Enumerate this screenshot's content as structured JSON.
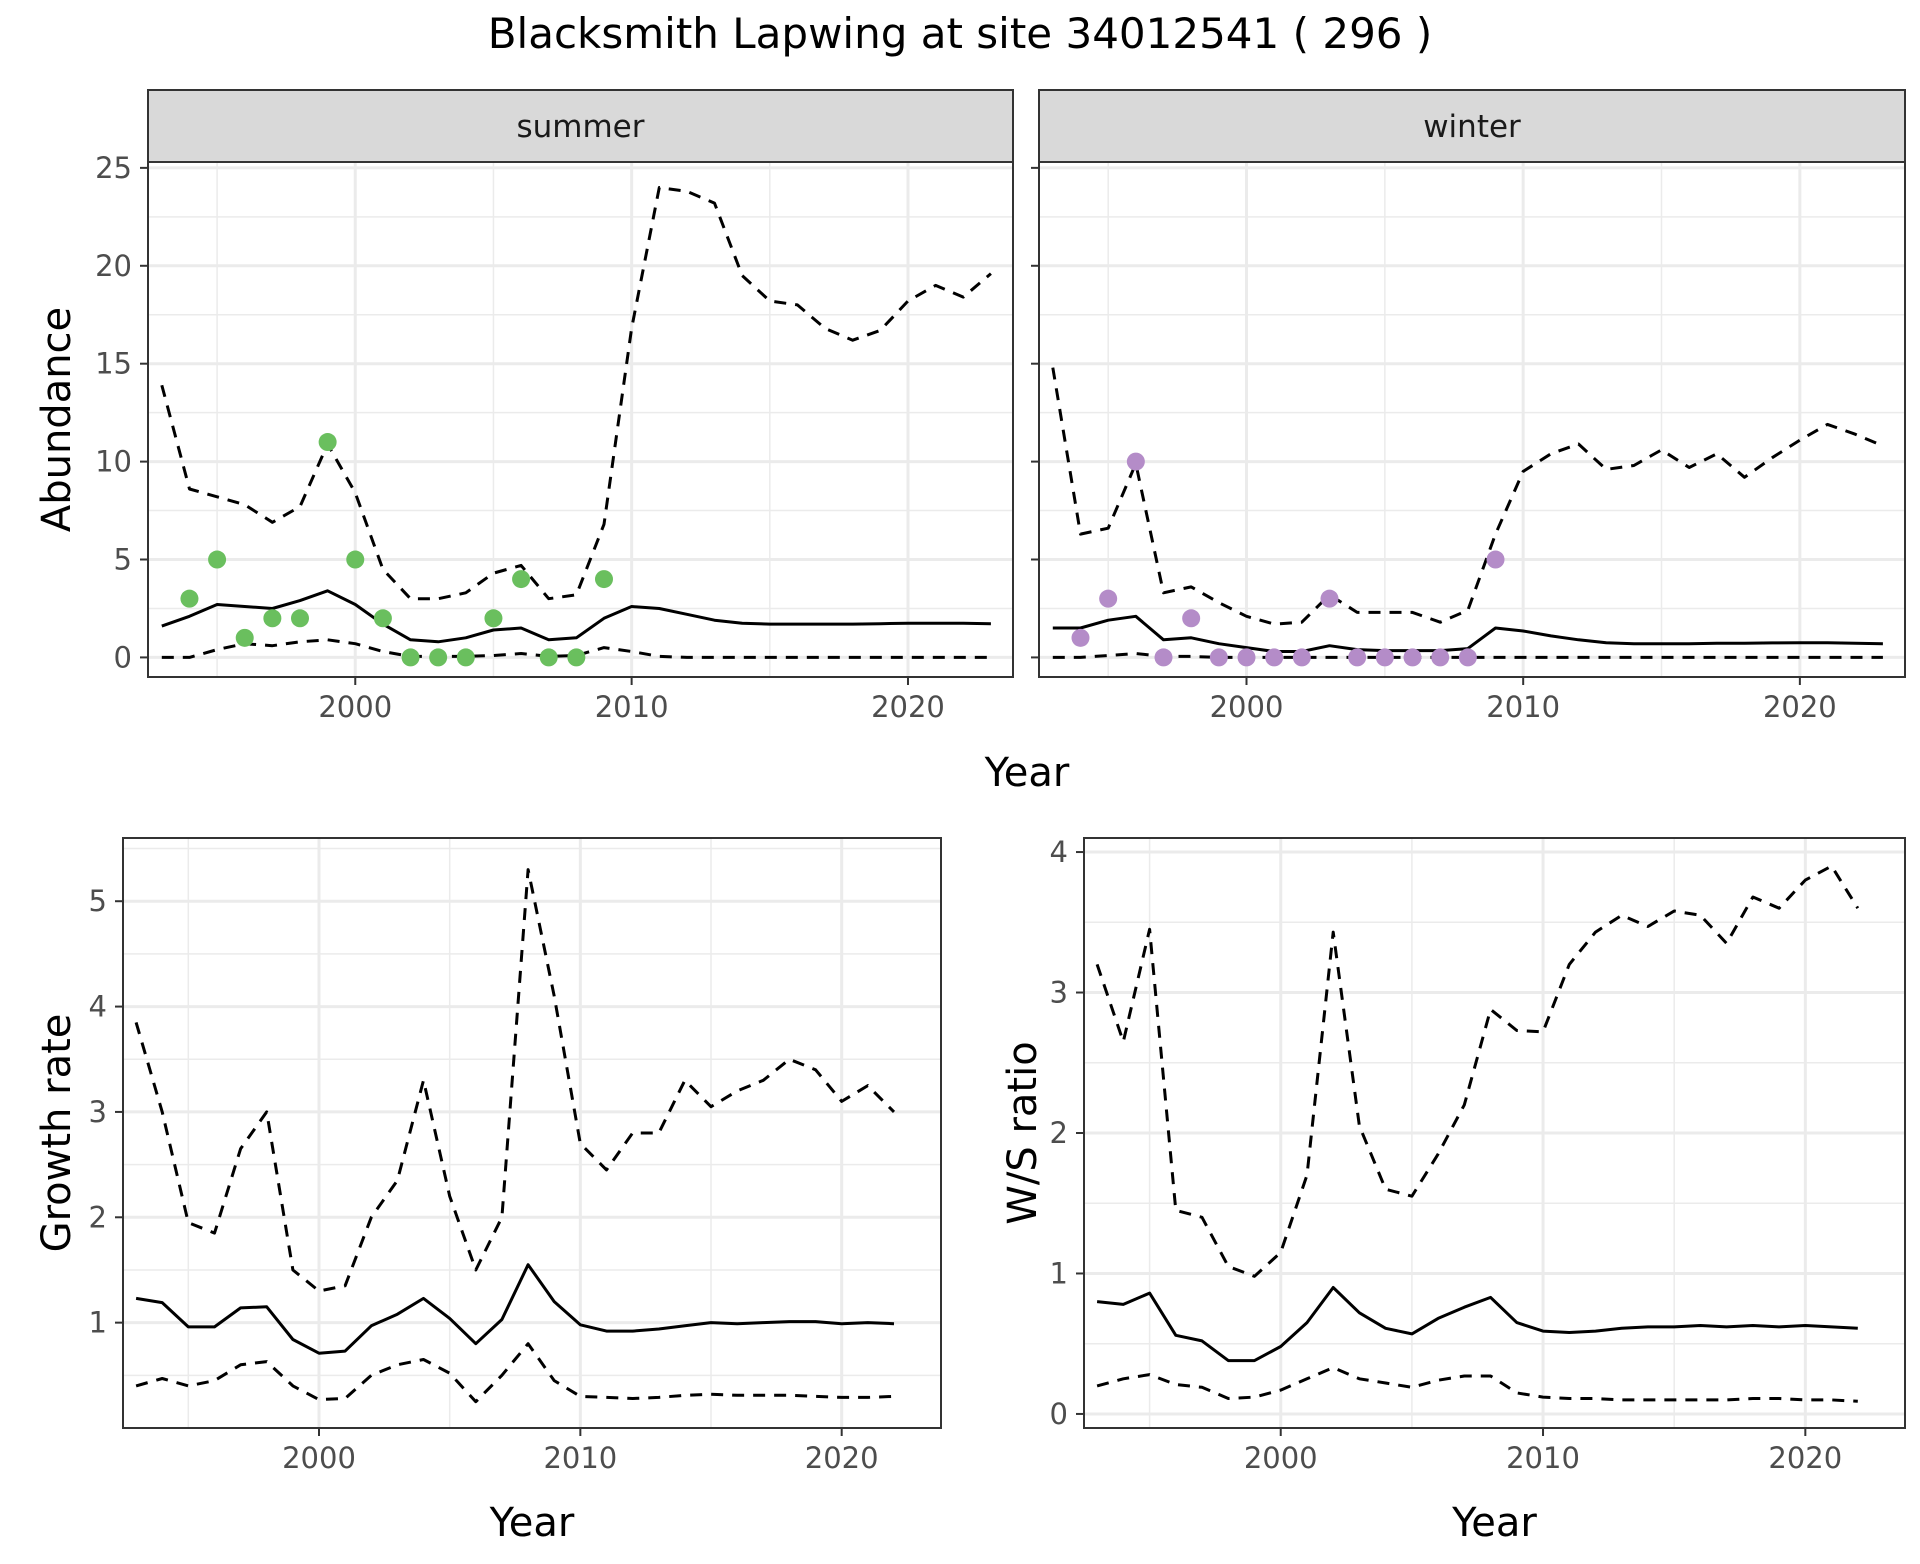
{
  "title": "Blacksmith Lapwing at site 34012541 ( 296 )",
  "abundance_xlabel": "Year",
  "colors": {
    "summer_points": "#6abf5e",
    "winter_points": "#b48cc8",
    "line": "#000000",
    "strip_bg": "#d9d9d9",
    "grid": "#ebebeb"
  },
  "chart_data": [
    {
      "type": "line",
      "facet": "summer",
      "xlabel": "",
      "ylabel": "Abundance",
      "xlim": [
        1992.5,
        2023.8
      ],
      "ylim": [
        -1,
        25.3
      ],
      "xticks": [
        2000,
        2010,
        2020
      ],
      "yticks": [
        0,
        5,
        10,
        15,
        20,
        25
      ],
      "x": [
        1993,
        1994,
        1995,
        1996,
        1997,
        1998,
        1999,
        2000,
        2001,
        2002,
        2003,
        2004,
        2005,
        2006,
        2007,
        2008,
        2009,
        2010,
        2011,
        2012,
        2013,
        2014,
        2015,
        2016,
        2017,
        2018,
        2019,
        2020,
        2021,
        2022,
        2023
      ],
      "series": [
        {
          "values": [
            1.6,
            2.1,
            2.7,
            2.6,
            2.5,
            2.9,
            3.4,
            2.7,
            1.7,
            0.9,
            0.8,
            1.0,
            1.4,
            1.5,
            0.9,
            1.0,
            2.0,
            2.6,
            2.5,
            2.2,
            1.9,
            1.75,
            1.7,
            1.7,
            1.7,
            1.7,
            1.72,
            1.75,
            1.75,
            1.74,
            1.72
          ],
          "style": "solid"
        },
        {
          "values": [
            13.9,
            8.6,
            8.2,
            7.8,
            6.9,
            7.7,
            10.9,
            8.4,
            4.5,
            3.0,
            3.0,
            3.3,
            4.3,
            4.7,
            3.0,
            3.2,
            6.8,
            16.8,
            24.0,
            23.8,
            23.2,
            19.5,
            18.2,
            18.0,
            16.8,
            16.2,
            16.7,
            18.2,
            19.0,
            18.4,
            19.6
          ],
          "style": "dashed"
        },
        {
          "values": [
            0.0,
            0.0,
            0.4,
            0.7,
            0.6,
            0.8,
            0.9,
            0.7,
            0.3,
            0.05,
            0.05,
            0.05,
            0.1,
            0.2,
            0.05,
            0.1,
            0.5,
            0.3,
            0.05,
            0.0,
            0.0,
            0.0,
            0.0,
            0.0,
            0.0,
            0.0,
            0.0,
            0.0,
            0.0,
            0.0,
            0.0
          ],
          "style": "dashed"
        }
      ],
      "points": {
        "x": [
          1994,
          1995,
          1996,
          1997,
          1998,
          1999,
          2000,
          2001,
          2002,
          2003,
          2004,
          2005,
          2006,
          2007,
          2008,
          2009
        ],
        "y": [
          3,
          5,
          1,
          2,
          2,
          11,
          5,
          2,
          0,
          0,
          0,
          2,
          4,
          0,
          0,
          4
        ]
      }
    },
    {
      "type": "line",
      "facet": "winter",
      "xlabel": "",
      "ylabel": "",
      "xlim": [
        1992.5,
        2023.8
      ],
      "ylim": [
        -1,
        25.3
      ],
      "xticks": [
        2000,
        2010,
        2020
      ],
      "yticks": [
        0,
        5,
        10,
        15,
        20,
        25
      ],
      "x": [
        1993,
        1994,
        1995,
        1996,
        1997,
        1998,
        1999,
        2000,
        2001,
        2002,
        2003,
        2004,
        2005,
        2006,
        2007,
        2008,
        2009,
        2010,
        2011,
        2012,
        2013,
        2014,
        2015,
        2016,
        2017,
        2018,
        2019,
        2020,
        2021,
        2022,
        2023
      ],
      "series": [
        {
          "values": [
            1.5,
            1.5,
            1.9,
            2.1,
            0.9,
            1.0,
            0.7,
            0.5,
            0.3,
            0.3,
            0.6,
            0.4,
            0.35,
            0.35,
            0.35,
            0.45,
            1.5,
            1.35,
            1.1,
            0.9,
            0.75,
            0.7,
            0.7,
            0.7,
            0.72,
            0.72,
            0.74,
            0.75,
            0.75,
            0.72,
            0.7
          ],
          "style": "solid"
        },
        {
          "values": [
            14.8,
            6.3,
            6.6,
            9.9,
            3.3,
            3.6,
            2.8,
            2.1,
            1.7,
            1.8,
            3.2,
            2.3,
            2.3,
            2.3,
            1.8,
            2.4,
            6.3,
            9.5,
            10.4,
            10.9,
            9.6,
            9.8,
            10.6,
            9.7,
            10.4,
            9.2,
            10.2,
            11.1,
            11.9,
            11.4,
            10.8
          ],
          "style": "dashed"
        },
        {
          "values": [
            0.0,
            0.0,
            0.1,
            0.2,
            0.05,
            0.05,
            0.0,
            0.0,
            0.0,
            0.0,
            0.0,
            0.0,
            0.0,
            0.0,
            0.0,
            0.0,
            0.0,
            0.0,
            0.0,
            0.0,
            0.0,
            0.0,
            0.0,
            0.0,
            0.0,
            0.0,
            0.0,
            0.0,
            0.0,
            0.0,
            0.0
          ],
          "style": "dashed"
        }
      ],
      "points": {
        "x": [
          1994,
          1995,
          1996,
          1997,
          1998,
          1999,
          2000,
          2001,
          2002,
          2003,
          2004,
          2005,
          2006,
          2007,
          2008,
          2009
        ],
        "y": [
          1,
          3,
          10,
          0,
          2,
          0,
          0,
          0,
          0,
          3,
          0,
          0,
          0,
          0,
          0,
          5
        ]
      }
    },
    {
      "type": "line",
      "facet": "",
      "xlabel": "Year",
      "ylabel": "Growth rate",
      "xlim": [
        1992.5,
        2023.8
      ],
      "ylim": [
        0.0,
        5.6
      ],
      "xticks": [
        2000,
        2010,
        2020
      ],
      "yticks": [
        1,
        2,
        3,
        4,
        5
      ],
      "x": [
        1993,
        1994,
        1995,
        1996,
        1997,
        1998,
        1999,
        2000,
        2001,
        2002,
        2003,
        2004,
        2005,
        2006,
        2007,
        2008,
        2009,
        2010,
        2011,
        2012,
        2013,
        2014,
        2015,
        2016,
        2017,
        2018,
        2019,
        2020,
        2021,
        2022
      ],
      "series": [
        {
          "values": [
            1.23,
            1.19,
            0.96,
            0.96,
            1.14,
            1.15,
            0.84,
            0.71,
            0.73,
            0.97,
            1.08,
            1.23,
            1.04,
            0.8,
            1.03,
            1.55,
            1.2,
            0.98,
            0.92,
            0.92,
            0.94,
            0.97,
            1.0,
            0.99,
            1.0,
            1.01,
            1.01,
            0.99,
            1.0,
            0.99
          ],
          "style": "solid"
        },
        {
          "values": [
            3.85,
            3.0,
            1.95,
            1.85,
            2.65,
            3.0,
            1.5,
            1.3,
            1.35,
            2.0,
            2.35,
            3.3,
            2.2,
            1.5,
            2.0,
            5.3,
            4.1,
            2.7,
            2.45,
            2.8,
            2.8,
            3.3,
            3.05,
            3.2,
            3.3,
            3.5,
            3.4,
            3.1,
            3.25,
            3.0
          ],
          "style": "dashed"
        },
        {
          "values": [
            0.4,
            0.47,
            0.4,
            0.45,
            0.6,
            0.63,
            0.4,
            0.27,
            0.28,
            0.5,
            0.6,
            0.65,
            0.52,
            0.25,
            0.5,
            0.8,
            0.45,
            0.3,
            0.29,
            0.28,
            0.29,
            0.31,
            0.32,
            0.31,
            0.31,
            0.31,
            0.3,
            0.29,
            0.29,
            0.3
          ],
          "style": "dashed"
        }
      ]
    },
    {
      "type": "line",
      "facet": "",
      "xlabel": "Year",
      "ylabel": "W/S ratio",
      "xlim": [
        1992.5,
        2023.8
      ],
      "ylim": [
        -0.1,
        4.1
      ],
      "xticks": [
        2000,
        2010,
        2020
      ],
      "yticks": [
        0,
        1,
        2,
        3,
        4
      ],
      "x": [
        1993,
        1994,
        1995,
        1996,
        1997,
        1998,
        1999,
        2000,
        2001,
        2002,
        2003,
        2004,
        2005,
        2006,
        2007,
        2008,
        2009,
        2010,
        2011,
        2012,
        2013,
        2014,
        2015,
        2016,
        2017,
        2018,
        2019,
        2020,
        2021,
        2022
      ],
      "series": [
        {
          "values": [
            0.8,
            0.78,
            0.86,
            0.56,
            0.52,
            0.38,
            0.38,
            0.48,
            0.65,
            0.9,
            0.72,
            0.61,
            0.57,
            0.68,
            0.76,
            0.83,
            0.65,
            0.59,
            0.58,
            0.59,
            0.61,
            0.62,
            0.62,
            0.63,
            0.62,
            0.63,
            0.62,
            0.63,
            0.62,
            0.61
          ],
          "style": "solid"
        },
        {
          "values": [
            3.2,
            2.65,
            3.45,
            1.45,
            1.4,
            1.05,
            0.98,
            1.15,
            1.7,
            3.43,
            2.05,
            1.6,
            1.55,
            1.85,
            2.2,
            2.88,
            2.73,
            2.72,
            3.2,
            3.43,
            3.55,
            3.47,
            3.58,
            3.55,
            3.35,
            3.68,
            3.6,
            3.8,
            3.9,
            3.6
          ],
          "style": "dashed"
        },
        {
          "values": [
            0.2,
            0.25,
            0.28,
            0.21,
            0.19,
            0.11,
            0.12,
            0.17,
            0.25,
            0.33,
            0.25,
            0.22,
            0.19,
            0.24,
            0.27,
            0.27,
            0.15,
            0.12,
            0.11,
            0.11,
            0.1,
            0.1,
            0.1,
            0.1,
            0.1,
            0.11,
            0.11,
            0.1,
            0.1,
            0.09
          ],
          "style": "dashed"
        }
      ]
    }
  ]
}
